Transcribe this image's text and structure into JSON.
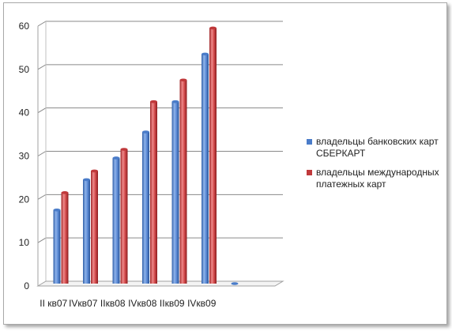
{
  "chart_data": {
    "type": "bar",
    "categories": [
      "II кв07",
      "IVкв07",
      "IIкв08",
      "IVкв08",
      "IIкв09",
      "IVкв09",
      "",
      ""
    ],
    "series": [
      {
        "name": "владельцы банковских карт СБЕРКАРТ",
        "values": [
          17,
          24,
          29,
          35,
          42,
          53,
          0,
          null
        ],
        "color": "#4a7cc9"
      },
      {
        "name": "владельцы международных платежных карт",
        "values": [
          21,
          26,
          31,
          42,
          47,
          59,
          null,
          null
        ],
        "color": "#c0393b"
      }
    ],
    "ylim": [
      0,
      60
    ],
    "yticks": [
      0,
      10,
      20,
      30,
      40,
      50,
      60
    ],
    "grid": true,
    "legend": "right",
    "style": "3d-cylinder"
  }
}
